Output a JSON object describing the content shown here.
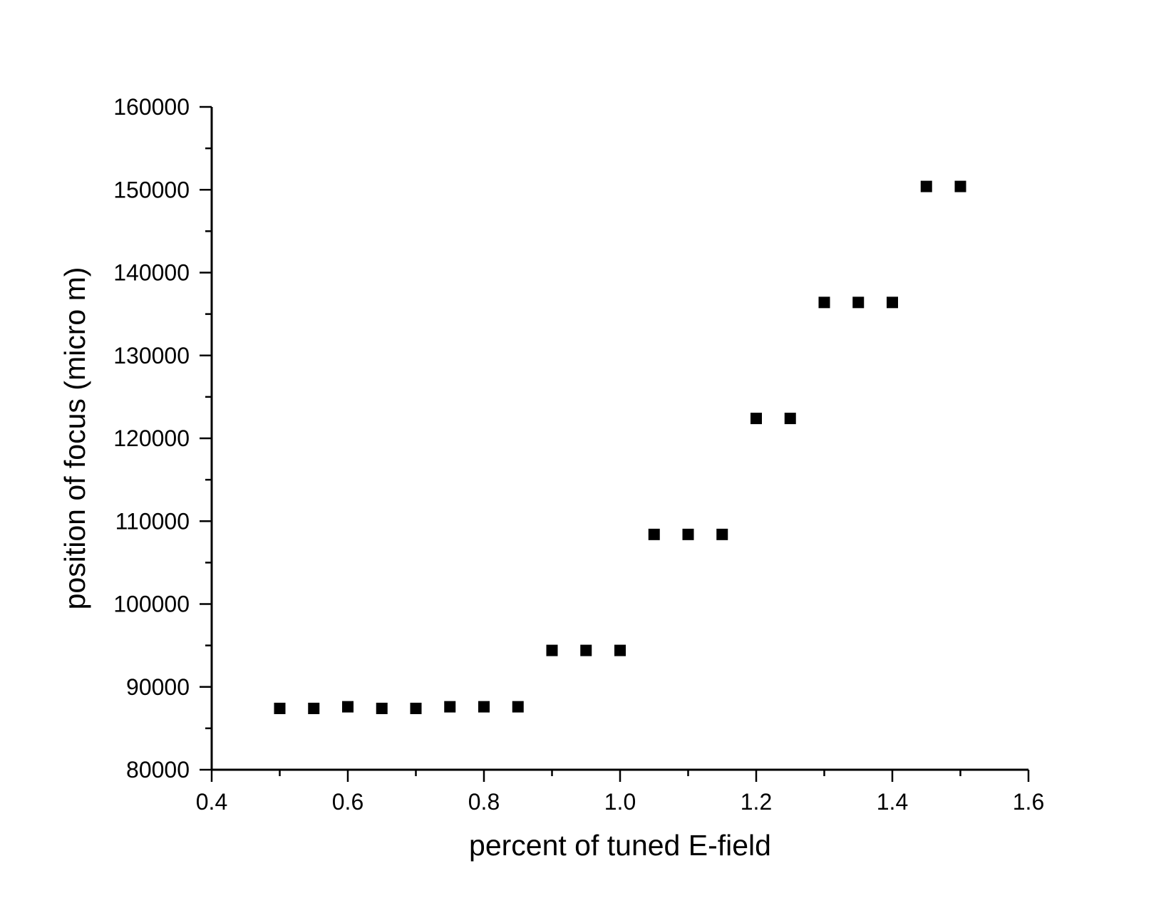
{
  "chart_data": {
    "type": "scatter",
    "xlabel": "percent of tuned E-field",
    "ylabel": "position of focus (micro m)",
    "xlim": [
      0.4,
      1.6
    ],
    "ylim": [
      80000,
      160000
    ],
    "x_major_ticks": [
      0.4,
      0.6,
      0.8,
      1.0,
      1.2,
      1.4,
      1.6
    ],
    "x_tick_labels": [
      "0.4",
      "0.6",
      "0.8",
      "1.0",
      "1.2",
      "1.4",
      "1.6"
    ],
    "x_minor_ticks": [
      0.5,
      0.7,
      0.9,
      1.1,
      1.3,
      1.5
    ],
    "y_major_ticks": [
      80000,
      90000,
      100000,
      110000,
      120000,
      130000,
      140000,
      150000,
      160000
    ],
    "y_tick_labels": [
      "80000",
      "90000",
      "100000",
      "110000",
      "120000",
      "130000",
      "140000",
      "150000",
      "160000"
    ],
    "y_minor_ticks": [
      85000,
      95000,
      105000,
      115000,
      125000,
      135000,
      145000,
      155000
    ],
    "grid": false,
    "legend": "none",
    "marker": "square",
    "marker_color": "#000000",
    "series": [
      {
        "points": [
          {
            "x": 0.5,
            "y": 87400
          },
          {
            "x": 0.55,
            "y": 87400
          },
          {
            "x": 0.6,
            "y": 87600
          },
          {
            "x": 0.65,
            "y": 87400
          },
          {
            "x": 0.7,
            "y": 87400
          },
          {
            "x": 0.75,
            "y": 87600
          },
          {
            "x": 0.8,
            "y": 87600
          },
          {
            "x": 0.85,
            "y": 87600
          },
          {
            "x": 0.9,
            "y": 94400
          },
          {
            "x": 0.95,
            "y": 94400
          },
          {
            "x": 1.0,
            "y": 94400
          },
          {
            "x": 1.05,
            "y": 108400
          },
          {
            "x": 1.1,
            "y": 108400
          },
          {
            "x": 1.15,
            "y": 108400
          },
          {
            "x": 1.2,
            "y": 122400
          },
          {
            "x": 1.25,
            "y": 122400
          },
          {
            "x": 1.3,
            "y": 136400
          },
          {
            "x": 1.35,
            "y": 136400
          },
          {
            "x": 1.4,
            "y": 136400
          },
          {
            "x": 1.45,
            "y": 150400
          },
          {
            "x": 1.5,
            "y": 150400
          }
        ]
      }
    ]
  }
}
